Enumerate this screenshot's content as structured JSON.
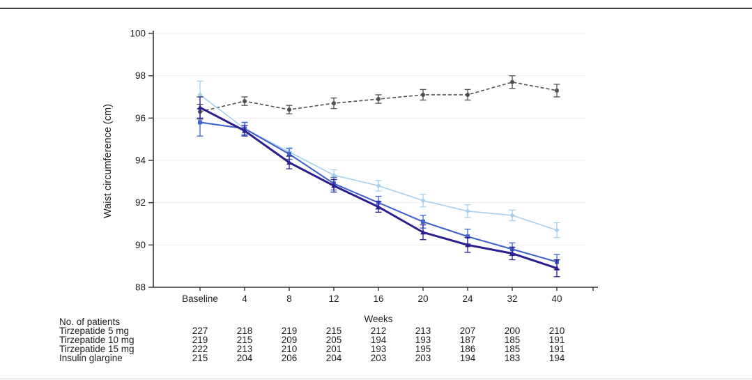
{
  "page": {
    "background": "#ffffff",
    "top_rule_color": "#3f3f3f",
    "bottom_rule_color": "#cfcfcf",
    "axis_color": "#333333",
    "gridline_color": "#ededed",
    "text_color": "#1c1c1c"
  },
  "chart_data": {
    "type": "line",
    "title": "",
    "ylabel": "Waist circumference (cm)",
    "xlabel": "Weeks",
    "ylim": [
      88,
      100
    ],
    "yticks": [
      88,
      90,
      92,
      94,
      96,
      98,
      100
    ],
    "categories": [
      "Baseline",
      "4",
      "8",
      "12",
      "16",
      "20",
      "24",
      "32",
      "40"
    ],
    "grid": "horizontal",
    "legend": "none (series identified in table below)",
    "series": [
      {
        "name": "Tirzepatide 5 mg",
        "color": "#a6cfec",
        "marker": "diamond",
        "line": "solid",
        "width": 1.6,
        "values": [
          97.1,
          95.5,
          94.4,
          93.3,
          92.8,
          92.1,
          91.6,
          91.4,
          90.7
        ],
        "err": [
          0.65,
          0.25,
          0.2,
          0.25,
          0.25,
          0.3,
          0.3,
          0.25,
          0.35
        ]
      },
      {
        "name": "Tirzepatide 10 mg",
        "color": "#3f63c8",
        "marker": "square",
        "line": "solid",
        "width": 2.1,
        "values": [
          95.8,
          95.5,
          94.3,
          92.9,
          92.0,
          91.1,
          90.4,
          89.8,
          89.2
        ],
        "err": [
          0.65,
          0.3,
          0.25,
          0.3,
          0.3,
          0.3,
          0.35,
          0.3,
          0.35
        ]
      },
      {
        "name": "Tirzepatide 15 mg",
        "color": "#2b1e8f",
        "marker": "triangle",
        "line": "solid",
        "width": 3,
        "values": [
          96.5,
          95.4,
          93.9,
          92.8,
          91.8,
          90.6,
          90.0,
          89.6,
          88.9
        ],
        "err": [
          0.5,
          0.25,
          0.3,
          0.3,
          0.25,
          0.35,
          0.35,
          0.3,
          0.4
        ]
      },
      {
        "name": "Insulin glargine",
        "color": "#4f4f4f",
        "marker": "circle",
        "line": "dashed",
        "width": 1.6,
        "values": [
          96.3,
          96.8,
          96.4,
          96.7,
          96.9,
          97.1,
          97.1,
          97.7,
          97.3
        ],
        "err": [
          0.35,
          0.2,
          0.2,
          0.25,
          0.2,
          0.25,
          0.25,
          0.3,
          0.3
        ]
      }
    ],
    "patients_table": {
      "header": "No. of patients",
      "rows": [
        {
          "label": "Tirzepatide 5 mg",
          "counts": [
            227,
            218,
            219,
            215,
            212,
            213,
            207,
            200,
            210
          ]
        },
        {
          "label": "Tirzepatide 10 mg",
          "counts": [
            219,
            215,
            209,
            205,
            194,
            193,
            187,
            185,
            191
          ]
        },
        {
          "label": "Tirzepatide 15 mg",
          "counts": [
            222,
            213,
            210,
            201,
            193,
            195,
            186,
            185,
            191
          ]
        },
        {
          "label": "Insulin glargine",
          "counts": [
            215,
            204,
            206,
            204,
            203,
            203,
            194,
            183,
            194
          ]
        }
      ]
    }
  }
}
